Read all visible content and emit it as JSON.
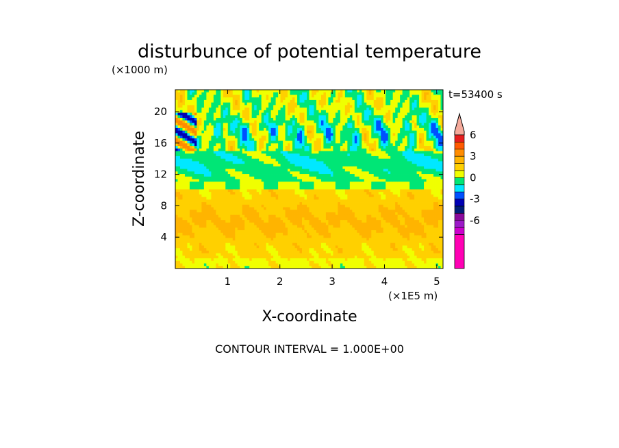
{
  "chart_data": {
    "type": "heatmap",
    "title": "disturbunce of potential temperature",
    "time_label": "t=53400 s",
    "z_unit_label": "(×1000 m)",
    "x_unit_label": "(×1E5 m)",
    "xlabel": "X-coordinate",
    "ylabel": "Z-coordinate",
    "footer": "CONTOUR INTERVAL = 1.000E+00",
    "xlim": [
      0,
      5.12
    ],
    "ylim": [
      0,
      22.8
    ],
    "x_ticks": [
      "1",
      "2",
      "3",
      "4",
      "5"
    ],
    "y_ticks": [
      "4",
      "8",
      "12",
      "16",
      "20"
    ],
    "x_tick_values": [
      1,
      2,
      3,
      4,
      5
    ],
    "y_tick_values": [
      4,
      8,
      12,
      16,
      20
    ],
    "colorbar": {
      "ticks": [
        "6",
        "3",
        "0",
        "-3",
        "-6"
      ],
      "tick_values": [
        6,
        3,
        0,
        -3,
        -6
      ],
      "levels": [
        {
          "lo": -12,
          "hi": -8,
          "color": "#ff00b4"
        },
        {
          "lo": -8,
          "hi": -7,
          "color": "#cc00cc"
        },
        {
          "lo": -7,
          "hi": -6,
          "color": "#9c1ac8"
        },
        {
          "lo": -6,
          "hi": -5,
          "color": "#8a0a9c"
        },
        {
          "lo": -5,
          "hi": -4,
          "color": "#001e78"
        },
        {
          "lo": -4,
          "hi": -3,
          "color": "#0000b4"
        },
        {
          "lo": -3,
          "hi": -2,
          "color": "#0050ff"
        },
        {
          "lo": -2,
          "hi": -1,
          "color": "#00e8ff"
        },
        {
          "lo": -1,
          "hi": 0,
          "color": "#00e676"
        },
        {
          "lo": 0,
          "hi": 1,
          "color": "#f0ff00"
        },
        {
          "lo": 1,
          "hi": 2,
          "color": "#ffd000"
        },
        {
          "lo": 2,
          "hi": 3,
          "color": "#ffb400"
        },
        {
          "lo": 3,
          "hi": 4,
          "color": "#ff8c00"
        },
        {
          "lo": 4,
          "hi": 5,
          "color": "#ff5a00"
        },
        {
          "lo": 5,
          "hi": 6,
          "color": "#e61e1e"
        },
        {
          "lo": 6,
          "hi": 12,
          "color": "#f5aa9b"
        }
      ]
    },
    "field_description": [
      {
        "z_range": [
          0,
          10
        ],
        "value": 1.5
      },
      {
        "z_range": [
          10,
          15
        ],
        "value": -0.5
      },
      {
        "z_range": [
          15,
          22.8
        ],
        "value": 0.5
      }
    ]
  }
}
